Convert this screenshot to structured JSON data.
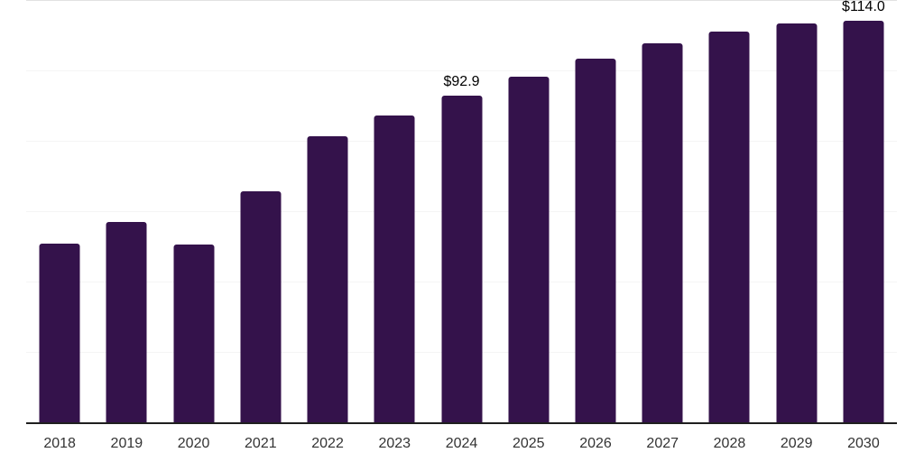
{
  "chart_data": {
    "type": "bar",
    "title": "",
    "xlabel": "",
    "ylabel": "",
    "categories": [
      "2018",
      "2019",
      "2020",
      "2021",
      "2022",
      "2023",
      "2024",
      "2025",
      "2026",
      "2027",
      "2028",
      "2029",
      "2030"
    ],
    "values": [
      50.8,
      56.9,
      50.6,
      65.7,
      81.2,
      87.3,
      92.9,
      98.3,
      103.3,
      107.7,
      111.1,
      113.3,
      114.0
    ],
    "data_labels": [
      {
        "category": "2024",
        "label": "$92.9"
      },
      {
        "category": "2030",
        "label": "$114.0"
      }
    ],
    "ylim": [
      0,
      120
    ],
    "gridline_values": [
      20,
      40,
      60,
      80,
      100,
      120
    ],
    "grid": true,
    "legend": "none",
    "y_axis_labels_visible": false,
    "colors": {
      "bar": "#34124b",
      "gridline": "#f5f5f5",
      "top_gridline": "#e2e2e2",
      "axis_line": "#1f1f1f",
      "data_label": "#000000",
      "tick_label": "#333333"
    }
  }
}
